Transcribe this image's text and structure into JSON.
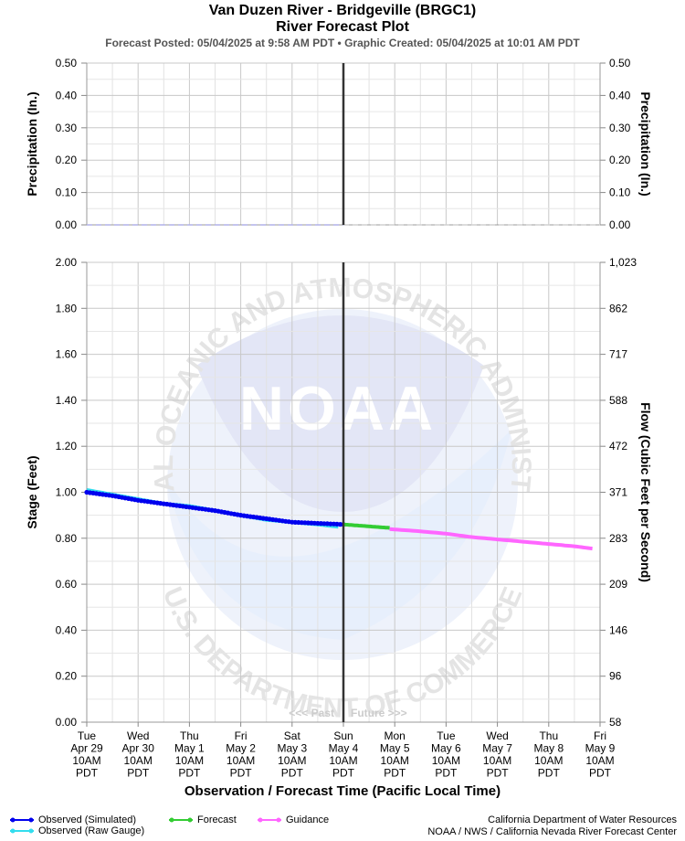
{
  "header": {
    "title_line1": "Van Duzen River - Bridgeville (BRGC1)",
    "title_line2": "River Forecast Plot",
    "subtitle": "Forecast Posted: 05/04/2025 at 9:58 AM PDT  •  Graphic Created: 05/04/2025 at 10:01 AM PDT"
  },
  "chart_data": [
    {
      "type": "line",
      "name": "precipitation",
      "ylabel_left": "Precipitation (In.)",
      "ylabel_right": "Precipitation (In.)",
      "ylim": [
        0,
        0.5
      ],
      "yticks": [
        "0.00",
        "0.10",
        "0.20",
        "0.30",
        "0.40",
        "0.50"
      ],
      "grid": true,
      "series": [
        {
          "legend": "",
          "color": "#b0b0e8",
          "style": "dashed",
          "x_days": [
            0,
            5
          ],
          "values": [
            0,
            0
          ]
        },
        {
          "legend": "",
          "color": "#d0d0d0",
          "style": "dashed",
          "x_days": [
            5,
            10
          ],
          "values": [
            0,
            0
          ]
        }
      ]
    },
    {
      "type": "line",
      "name": "stage-flow",
      "ylabel_left": "Stage (Feet)",
      "ylabel_right": "Flow (Cubic Feet per Second)",
      "xlabel": "Observation / Forecast Time (Pacific Local Time)",
      "ylim": [
        0,
        2
      ],
      "yticks": [
        "0.00",
        "0.20",
        "0.40",
        "0.60",
        "0.80",
        "1.00",
        "1.20",
        "1.40",
        "1.60",
        "1.80",
        "2.00"
      ],
      "right_ticks": [
        "58",
        "96",
        "146",
        "209",
        "283",
        "371",
        "472",
        "588",
        "717",
        "862",
        "1,023"
      ],
      "grid": true,
      "x_ticks": [
        [
          "Tue",
          "Apr 29",
          "10AM",
          "PDT"
        ],
        [
          "Wed",
          "Apr 30",
          "10AM",
          "PDT"
        ],
        [
          "Thu",
          "May 1",
          "10AM",
          "PDT"
        ],
        [
          "Fri",
          "May 2",
          "10AM",
          "PDT"
        ],
        [
          "Sat",
          "May 3",
          "10AM",
          "PDT"
        ],
        [
          "Sun",
          "May 4",
          "10AM",
          "PDT"
        ],
        [
          "Mon",
          "May 5",
          "10AM",
          "PDT"
        ],
        [
          "Tue",
          "May 6",
          "10AM",
          "PDT"
        ],
        [
          "Wed",
          "May 7",
          "10AM",
          "PDT"
        ],
        [
          "Thu",
          "May 8",
          "10AM",
          "PDT"
        ],
        [
          "Fri",
          "May 9",
          "10AM",
          "PDT"
        ]
      ],
      "now_marker_x_day": 5,
      "past_label": "<<< Past",
      "future_label": "Future >>>",
      "series": [
        {
          "legend": "Observed (Raw Gauge)",
          "color": "#33ddee",
          "x_days": [
            0,
            0.5,
            1,
            1.5,
            2,
            2.5,
            3,
            3.5,
            4,
            4.5,
            4.9
          ],
          "values": [
            1.01,
            0.99,
            0.97,
            0.95,
            0.94,
            0.92,
            0.9,
            0.88,
            0.87,
            0.86,
            0.85
          ]
        },
        {
          "legend": "Observed (Simulated)",
          "color": "#0000ee",
          "x_days": [
            0,
            0.5,
            1,
            1.5,
            2,
            2.5,
            3,
            3.5,
            4,
            4.5,
            5
          ],
          "values": [
            1.0,
            0.985,
            0.965,
            0.95,
            0.935,
            0.92,
            0.9,
            0.885,
            0.87,
            0.865,
            0.86
          ]
        },
        {
          "legend": "Forecast",
          "color": "#33cc33",
          "x_days": [
            5,
            5.3,
            5.6,
            5.9
          ],
          "values": [
            0.86,
            0.855,
            0.85,
            0.845
          ]
        },
        {
          "legend": "Guidance",
          "color": "#ff66ff",
          "x_days": [
            5.9,
            6.5,
            7,
            7.5,
            8,
            8.5,
            9,
            9.5,
            9.85
          ],
          "values": [
            0.84,
            0.83,
            0.82,
            0.805,
            0.795,
            0.785,
            0.775,
            0.765,
            0.755
          ]
        }
      ]
    }
  ],
  "legend": {
    "observed_sim": "Observed (Simulated)",
    "observed_raw": "Observed (Raw Gauge)",
    "forecast": "Forecast",
    "guidance": "Guidance"
  },
  "credits": {
    "line1": "California Department of Water Resources",
    "line2": "NOAA / NWS / California Nevada River Forecast Center"
  },
  "watermark": {
    "text": "NOAA",
    "ring_text_top": "NATIONAL OCEANIC AND ATMOSPHERIC ADMINISTRATION",
    "ring_text_bottom": "U.S. DEPARTMENT OF COMMERCE"
  },
  "colors": {
    "observed_sim": "#0000ee",
    "observed_raw": "#33ddee",
    "forecast": "#33cc33",
    "guidance": "#ff66ff",
    "grid": "#cccccc",
    "now_line": "#333333"
  }
}
